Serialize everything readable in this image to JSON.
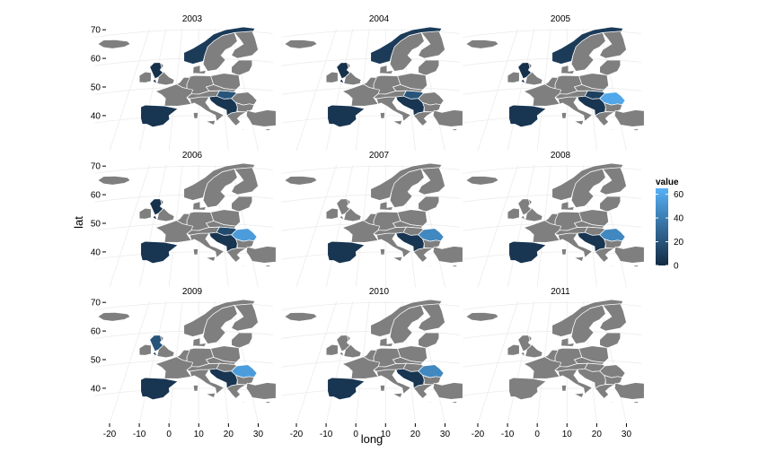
{
  "facets": [
    {
      "year": "2003",
      "value_regions": {
        "iberia": 5,
        "norway": 8,
        "balkan": 5,
        "hungary": 20,
        "uk_west": 3
      }
    },
    {
      "year": "2004",
      "value_regions": {
        "iberia": 5,
        "norway": 8,
        "balkan": 5,
        "hungary": 20,
        "uk_west": 3
      }
    },
    {
      "year": "2005",
      "value_regions": {
        "iberia": 5,
        "norway": 8,
        "balkan": 5,
        "hungary": 10,
        "romania": 60,
        "uk_west": 3
      }
    },
    {
      "year": "2006",
      "value_regions": {
        "iberia": 5,
        "scandinavia": 8,
        "balkan": 5,
        "hungary": 15,
        "romania": 55,
        "uk_west": 3
      }
    },
    {
      "year": "2007",
      "value_regions": {
        "iberia": 5,
        "scandinavia": 8,
        "balkan": 5,
        "romania": 45
      }
    },
    {
      "year": "2008",
      "value_regions": {
        "iberia": 5,
        "scandinavia": 8,
        "balkan": 5,
        "romania": 45
      }
    },
    {
      "year": "2009",
      "value_regions": {
        "iberia": 5,
        "scandinavia": 8,
        "balkan": 5,
        "romania": 55,
        "uk_west": 20
      }
    },
    {
      "year": "2010",
      "value_regions": {
        "iberia": 5,
        "scandinavia": 8,
        "balkan": 5,
        "romania": 45
      }
    },
    {
      "year": "2011",
      "value_regions": {}
    }
  ],
  "axes": {
    "x_title": "long",
    "y_title": "lat",
    "x_ticks": [
      "-20",
      "-10",
      "0",
      "10",
      "20",
      "30"
    ],
    "y_ticks": [
      "40",
      "50",
      "60",
      "70"
    ]
  },
  "legend": {
    "title": "value",
    "ticks": [
      "0",
      "20",
      "40",
      "60"
    ],
    "low_color": "#132b43",
    "high_color": "#56b1f7",
    "range": [
      0,
      65
    ]
  },
  "colors": {
    "na_fill": "#7f7f7f",
    "border": "#ffffff",
    "graticule": "#ececec"
  }
}
